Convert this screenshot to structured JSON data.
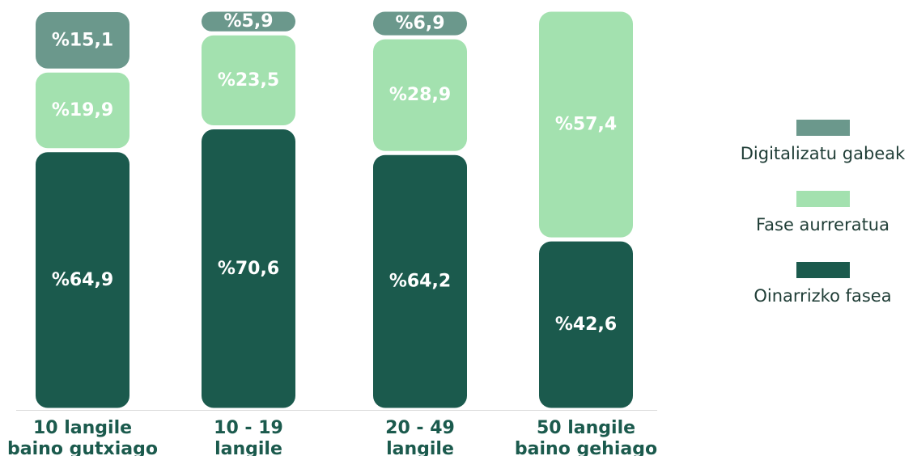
{
  "chart_data": {
    "type": "bar",
    "stacked": true,
    "categories": [
      [
        "10 langile",
        "baino gutxiago"
      ],
      [
        "10 - 19",
        "langile"
      ],
      [
        "20 - 49",
        "langile"
      ],
      [
        "50 langile",
        "baino gehiago"
      ]
    ],
    "series": [
      {
        "name": "Oinarrizko fasea",
        "color": "#1b5a4d",
        "values": [
          64.9,
          70.6,
          64.2,
          42.6
        ],
        "labels": [
          "%64,9",
          "%70,6",
          "%64,2",
          "%42,6"
        ]
      },
      {
        "name": "Fase aurreratua",
        "color": "#a3e1af",
        "values": [
          19.9,
          23.5,
          28.9,
          57.4
        ],
        "labels": [
          "%19,9",
          "%23,5",
          "%28,9",
          "%57,4"
        ]
      },
      {
        "name": "Digitalizatu gabeak",
        "color": "#6b988c",
        "values": [
          15.1,
          5.9,
          6.9,
          0
        ],
        "labels": [
          "%15,1",
          "%5,9",
          "%6,9",
          ""
        ]
      }
    ],
    "ylim": [
      0,
      100
    ],
    "grid": false,
    "legend_position": "right",
    "legend_order": [
      "Digitalizatu gabeak",
      "Fase aurreratua",
      "Oinarrizko fasea"
    ]
  }
}
